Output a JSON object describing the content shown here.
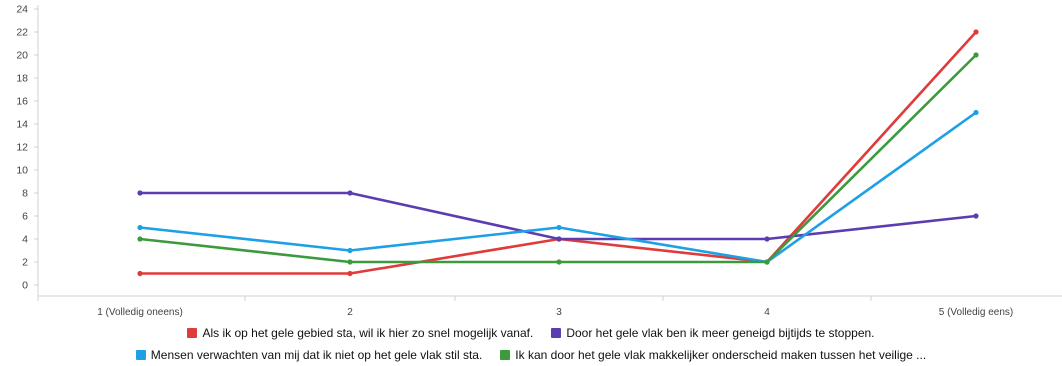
{
  "chart_data": {
    "type": "line",
    "categories": [
      "1 (Volledig oneens)",
      "2",
      "3",
      "4",
      "5 (Volledig eens)"
    ],
    "ylim": [
      0,
      24
    ],
    "yticks": [
      0,
      2,
      4,
      6,
      8,
      10,
      12,
      14,
      16,
      18,
      20,
      22,
      24
    ],
    "grid": false,
    "legend_position": "bottom",
    "series": [
      {
        "name": "Als ik op het gele gebied sta, wil ik hier zo snel mogelijk vanaf.",
        "color": "#e03b3b",
        "values": [
          1,
          1,
          4,
          2,
          22
        ]
      },
      {
        "name": "Door het gele vlak ben ik meer geneigd bijtijds te stoppen.",
        "color": "#5a3db0",
        "values": [
          8,
          8,
          4,
          4,
          6
        ]
      },
      {
        "name": "Mensen verwachten van mij dat ik niet op het gele vlak stil sta.",
        "color": "#1ea0e6",
        "values": [
          5,
          3,
          5,
          2,
          15
        ]
      },
      {
        "name": "Ik kan door het gele vlak makkelijker onderscheid maken tussen het veilige ...",
        "color": "#3c9a3c",
        "values": [
          4,
          2,
          2,
          2,
          20
        ]
      }
    ]
  }
}
